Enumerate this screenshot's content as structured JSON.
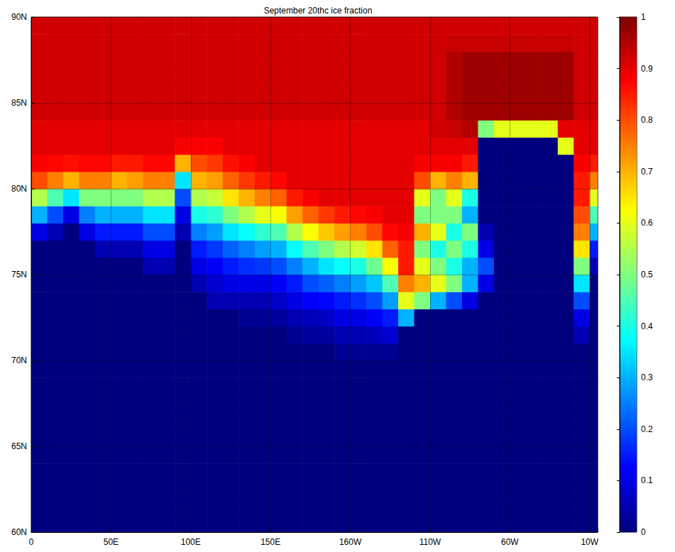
{
  "chart_data": {
    "type": "heatmap",
    "title": "September 20thc ice fraction",
    "x": [
      5,
      15,
      25,
      35,
      45,
      55,
      65,
      75,
      85,
      95,
      105,
      115,
      125,
      135,
      145,
      155,
      165,
      175,
      185,
      195,
      205,
      215,
      225,
      235,
      245,
      255,
      265,
      275,
      285,
      295,
      305,
      315,
      325,
      335,
      345,
      355
    ],
    "y": [
      60.5,
      61.5,
      62.5,
      63.5,
      64.5,
      65.5,
      66.5,
      67.5,
      68.5,
      69.5,
      70.5,
      71.5,
      72.5,
      73.5,
      74.5,
      75.5,
      76.5,
      77.5,
      78.5,
      79.5,
      80.5,
      81.5,
      82.5,
      83.5,
      84.5,
      85.5,
      86.5,
      87.5,
      88.5,
      89.5
    ],
    "values": [
      [
        0,
        0,
        0,
        0,
        0,
        0,
        0,
        0,
        0,
        0,
        0,
        0,
        0,
        0,
        0,
        0,
        0,
        0,
        0,
        0,
        0,
        0,
        0,
        0,
        0,
        0,
        0,
        0,
        0,
        0,
        0,
        0,
        0,
        0,
        0,
        0
      ],
      [
        0,
        0,
        0,
        0,
        0,
        0,
        0,
        0,
        0,
        0,
        0,
        0,
        0,
        0,
        0,
        0,
        0,
        0,
        0,
        0,
        0,
        0,
        0,
        0,
        0,
        0,
        0,
        0,
        0,
        0,
        0,
        0,
        0,
        0,
        0,
        0
      ],
      [
        0,
        0,
        0,
        0,
        0,
        0,
        0,
        0,
        0,
        0,
        0,
        0,
        0,
        0,
        0,
        0,
        0,
        0,
        0,
        0,
        0,
        0,
        0,
        0,
        0,
        0,
        0,
        0,
        0,
        0,
        0,
        0,
        0,
        0,
        0,
        0
      ],
      [
        0,
        0,
        0,
        0,
        0,
        0,
        0,
        0,
        0,
        0,
        0,
        0,
        0,
        0,
        0,
        0,
        0,
        0,
        0,
        0,
        0,
        0,
        0,
        0,
        0,
        0,
        0,
        0,
        0,
        0,
        0,
        0,
        0,
        0,
        0,
        0
      ],
      [
        0,
        0,
        0,
        0,
        0,
        0,
        0,
        0,
        0,
        0,
        0,
        0,
        0,
        0,
        0,
        0,
        0,
        0,
        0,
        0,
        0,
        0,
        0,
        0,
        0,
        0,
        0,
        0,
        0,
        0,
        0,
        0,
        0,
        0,
        0,
        0
      ],
      [
        0,
        0,
        0,
        0,
        0,
        0,
        0,
        0,
        0,
        0,
        0,
        0,
        0,
        0,
        0,
        0,
        0,
        0,
        0,
        0,
        0,
        0,
        0,
        0,
        0,
        0,
        0,
        0,
        0,
        0,
        0,
        0,
        0,
        0,
        0,
        0
      ],
      [
        0,
        0,
        0,
        0,
        0,
        0,
        0,
        0,
        0,
        0,
        0,
        0,
        0,
        0,
        0,
        0,
        0,
        0,
        0,
        0,
        0,
        0,
        0,
        0,
        0,
        0,
        0,
        0,
        0,
        0,
        0,
        0,
        0,
        0,
        0,
        0
      ],
      [
        0,
        0,
        0,
        0,
        0,
        0,
        0,
        0,
        0,
        0,
        0,
        0,
        0,
        0,
        0,
        0,
        0,
        0,
        0,
        0,
        0,
        0,
        0,
        0,
        0,
        0,
        0,
        0,
        0,
        0,
        0,
        0,
        0,
        0,
        0,
        0
      ],
      [
        0,
        0,
        0,
        0,
        0,
        0,
        0,
        0,
        0,
        0,
        0,
        0,
        0,
        0,
        0,
        0,
        0,
        0,
        0,
        0,
        0,
        0,
        0,
        0,
        0,
        0,
        0,
        0,
        0,
        0,
        0,
        0,
        0,
        0,
        0,
        0
      ],
      [
        0,
        0,
        0,
        0,
        0,
        0,
        0,
        0,
        0,
        0,
        0,
        0,
        0,
        0,
        0,
        0,
        0,
        0,
        0,
        0,
        0,
        0,
        0,
        0,
        0,
        0,
        0,
        0,
        0,
        0,
        0,
        0,
        0,
        0,
        0,
        0
      ],
      [
        0,
        0,
        0,
        0,
        0,
        0,
        0,
        0,
        0,
        0,
        0,
        0,
        0,
        0,
        0,
        0,
        0,
        0,
        0,
        0.02,
        0.02,
        0.02,
        0.02,
        0,
        0,
        0,
        0,
        0,
        0,
        0,
        0,
        0,
        0,
        0,
        0,
        0
      ],
      [
        0,
        0,
        0,
        0,
        0,
        0,
        0,
        0,
        0,
        0,
        0,
        0,
        0,
        0,
        0,
        0,
        0.02,
        0.03,
        0.03,
        0.05,
        0.05,
        0.06,
        0.08,
        0,
        0,
        0,
        0,
        0,
        0,
        0,
        0,
        0,
        0,
        0,
        0.05,
        0
      ],
      [
        0,
        0,
        0,
        0,
        0,
        0,
        0,
        0,
        0,
        0,
        0,
        0,
        0,
        0.02,
        0.02,
        0.03,
        0.05,
        0.06,
        0.07,
        0.1,
        0.1,
        0.12,
        0.15,
        0.3,
        0,
        0,
        0,
        0,
        0,
        0,
        0,
        0,
        0,
        0,
        0.1,
        0
      ],
      [
        0,
        0,
        0,
        0,
        0,
        0,
        0,
        0,
        0,
        0,
        0,
        0.05,
        0.05,
        0.05,
        0.05,
        0.07,
        0.1,
        0.12,
        0.13,
        0.15,
        0.17,
        0.2,
        0.28,
        0.6,
        0.5,
        0.3,
        0.2,
        0.1,
        0,
        0,
        0,
        0,
        0,
        0,
        0.2,
        0
      ],
      [
        0,
        0,
        0,
        0,
        0,
        0,
        0,
        0,
        0,
        0,
        0.05,
        0.08,
        0.1,
        0.1,
        0.1,
        0.12,
        0.15,
        0.2,
        0.22,
        0.25,
        0.28,
        0.32,
        0.45,
        0.75,
        0.7,
        0.6,
        0.5,
        0.3,
        0.1,
        0,
        0,
        0,
        0,
        0,
        0.35,
        0
      ],
      [
        0,
        0,
        0,
        0,
        0,
        0,
        0,
        0.05,
        0.05,
        0,
        0.1,
        0.12,
        0.15,
        0.17,
        0.18,
        0.2,
        0.25,
        0.3,
        0.35,
        0.38,
        0.4,
        0.48,
        0.62,
        0.85,
        0.6,
        0.5,
        0.4,
        0.3,
        0.2,
        0,
        0,
        0,
        0,
        0,
        0.5,
        0.05
      ],
      [
        0,
        0,
        0,
        0,
        0.05,
        0.05,
        0.05,
        0.1,
        0.1,
        0,
        0.15,
        0.18,
        0.22,
        0.25,
        0.28,
        0.3,
        0.38,
        0.45,
        0.5,
        0.55,
        0.58,
        0.65,
        0.78,
        0.85,
        0.5,
        0.4,
        0.5,
        0.4,
        0.1,
        0,
        0,
        0,
        0,
        0,
        0.65,
        0.15
      ],
      [
        0.1,
        0.05,
        0,
        0.1,
        0.15,
        0.15,
        0.15,
        0.2,
        0.2,
        0.05,
        0.25,
        0.28,
        0.35,
        0.38,
        0.42,
        0.45,
        0.55,
        0.62,
        0.68,
        0.72,
        0.75,
        0.8,
        0.87,
        0.88,
        0.7,
        0.6,
        0.4,
        0.5,
        0.05,
        0,
        0,
        0,
        0,
        0,
        0.75,
        0.3
      ],
      [
        0.3,
        0.2,
        0.1,
        0.25,
        0.3,
        0.3,
        0.3,
        0.35,
        0.35,
        0.1,
        0.4,
        0.42,
        0.5,
        0.55,
        0.6,
        0.62,
        0.72,
        0.78,
        0.82,
        0.85,
        0.87,
        0.88,
        0.9,
        0.9,
        0.5,
        0.5,
        0.5,
        0.3,
        0,
        0,
        0,
        0,
        0,
        0,
        0.8,
        0.45
      ],
      [
        0.55,
        0.45,
        0.35,
        0.5,
        0.5,
        0.5,
        0.5,
        0.55,
        0.55,
        0.2,
        0.55,
        0.57,
        0.65,
        0.7,
        0.75,
        0.78,
        0.85,
        0.88,
        0.9,
        0.9,
        0.9,
        0.9,
        0.9,
        0.9,
        0.6,
        0.5,
        0.6,
        0.4,
        0,
        0,
        0,
        0,
        0,
        0,
        0.85,
        0.6
      ],
      [
        0.8,
        0.75,
        0.7,
        0.75,
        0.75,
        0.7,
        0.72,
        0.75,
        0.75,
        0.35,
        0.7,
        0.72,
        0.78,
        0.82,
        0.85,
        0.87,
        0.9,
        0.9,
        0.9,
        0.9,
        0.9,
        0.9,
        0.9,
        0.9,
        0.8,
        0.7,
        0.75,
        0.7,
        0,
        0,
        0,
        0,
        0,
        0,
        0.85,
        0.75
      ],
      [
        0.88,
        0.87,
        0.86,
        0.87,
        0.87,
        0.85,
        0.85,
        0.87,
        0.87,
        0.7,
        0.8,
        0.82,
        0.86,
        0.88,
        0.9,
        0.9,
        0.9,
        0.9,
        0.9,
        0.9,
        0.9,
        0.9,
        0.9,
        0.9,
        0.88,
        0.88,
        0.88,
        0.85,
        0,
        0,
        0,
        0,
        0,
        0,
        0.88,
        0.85
      ],
      [
        0.9,
        0.9,
        0.9,
        0.9,
        0.9,
        0.9,
        0.9,
        0.9,
        0.9,
        0.88,
        0.88,
        0.88,
        0.9,
        0.9,
        0.9,
        0.9,
        0.9,
        0.9,
        0.9,
        0.9,
        0.9,
        0.9,
        0.9,
        0.9,
        0.9,
        0.9,
        0.9,
        0.9,
        0,
        0,
        0,
        0,
        0,
        0.6,
        0.9,
        0.9
      ],
      [
        0.9,
        0.9,
        0.9,
        0.9,
        0.9,
        0.9,
        0.9,
        0.9,
        0.9,
        0.9,
        0.9,
        0.9,
        0.9,
        0.9,
        0.9,
        0.9,
        0.9,
        0.9,
        0.9,
        0.9,
        0.9,
        0.9,
        0.9,
        0.9,
        0.9,
        0.92,
        0.93,
        0.95,
        0.5,
        0.6,
        0.6,
        0.6,
        0.6,
        0.9,
        0.9,
        0.9
      ],
      [
        0.92,
        0.92,
        0.92,
        0.92,
        0.92,
        0.92,
        0.92,
        0.92,
        0.92,
        0.92,
        0.92,
        0.92,
        0.92,
        0.92,
        0.92,
        0.92,
        0.92,
        0.92,
        0.92,
        0.92,
        0.92,
        0.92,
        0.92,
        0.92,
        0.92,
        0.92,
        0.95,
        0.97,
        0.97,
        0.97,
        0.97,
        0.97,
        0.97,
        0.97,
        0.92,
        0.92
      ],
      [
        0.92,
        0.92,
        0.92,
        0.92,
        0.92,
        0.92,
        0.92,
        0.92,
        0.92,
        0.92,
        0.92,
        0.92,
        0.92,
        0.92,
        0.92,
        0.92,
        0.92,
        0.92,
        0.92,
        0.92,
        0.92,
        0.92,
        0.92,
        0.92,
        0.92,
        0.92,
        0.95,
        0.97,
        0.97,
        0.97,
        0.97,
        0.97,
        0.97,
        0.97,
        0.92,
        0.92
      ],
      [
        0.92,
        0.92,
        0.92,
        0.92,
        0.92,
        0.92,
        0.92,
        0.92,
        0.92,
        0.92,
        0.92,
        0.92,
        0.92,
        0.92,
        0.92,
        0.92,
        0.92,
        0.92,
        0.92,
        0.92,
        0.92,
        0.92,
        0.92,
        0.92,
        0.92,
        0.92,
        0.95,
        0.97,
        0.97,
        0.97,
        0.97,
        0.97,
        0.97,
        0.97,
        0.92,
        0.92
      ],
      [
        0.92,
        0.92,
        0.92,
        0.92,
        0.92,
        0.92,
        0.92,
        0.92,
        0.92,
        0.92,
        0.92,
        0.92,
        0.92,
        0.92,
        0.92,
        0.92,
        0.92,
        0.92,
        0.92,
        0.92,
        0.92,
        0.92,
        0.92,
        0.92,
        0.92,
        0.92,
        0.95,
        0.97,
        0.97,
        0.97,
        0.97,
        0.97,
        0.97,
        0.97,
        0.92,
        0.92
      ],
      [
        0.92,
        0.92,
        0.92,
        0.92,
        0.92,
        0.92,
        0.92,
        0.92,
        0.92,
        0.92,
        0.92,
        0.92,
        0.92,
        0.92,
        0.92,
        0.92,
        0.92,
        0.92,
        0.92,
        0.92,
        0.92,
        0.92,
        0.92,
        0.92,
        0.92,
        0.92,
        0.93,
        0.93,
        0.93,
        0.93,
        0.93,
        0.93,
        0.93,
        0.93,
        0.92,
        0.92
      ],
      [
        0.92,
        0.92,
        0.92,
        0.92,
        0.92,
        0.92,
        0.92,
        0.92,
        0.92,
        0.92,
        0.92,
        0.92,
        0.92,
        0.92,
        0.92,
        0.92,
        0.92,
        0.92,
        0.92,
        0.92,
        0.92,
        0.92,
        0.92,
        0.92,
        0.92,
        0.92,
        0.92,
        0.92,
        0.92,
        0.92,
        0.92,
        0.92,
        0.92,
        0.92,
        0.92,
        0.92
      ]
    ],
    "xlim": [
      0,
      355
    ],
    "xticks": [
      0,
      {
        "value": 50,
        "label": "50E"
      },
      {
        "value": 100,
        "label": "100E"
      },
      {
        "value": 150,
        "label": "150E"
      },
      {
        "value": 200,
        "label": "160W"
      },
      {
        "value": 250,
        "label": "110W"
      },
      {
        "value": 300,
        "label": "60W"
      },
      {
        "value": 350,
        "label": "10W"
      }
    ],
    "ylim": [
      60,
      90
    ],
    "yticks": [
      {
        "value": 60,
        "label": "60N"
      },
      {
        "value": 65,
        "label": "65N"
      },
      {
        "value": 70,
        "label": "70N"
      },
      {
        "value": 75,
        "label": "75N"
      },
      {
        "value": 80,
        "label": "80N"
      },
      {
        "value": 85,
        "label": "85N"
      },
      {
        "value": 90,
        "label": "90N"
      }
    ],
    "colorbar_lim": [
      0,
      1
    ],
    "colorbar_ticks": [
      0,
      0.1,
      0.2,
      0.3,
      0.4,
      0.5,
      0.6,
      0.7,
      0.8,
      0.9,
      1
    ],
    "grid": true
  }
}
